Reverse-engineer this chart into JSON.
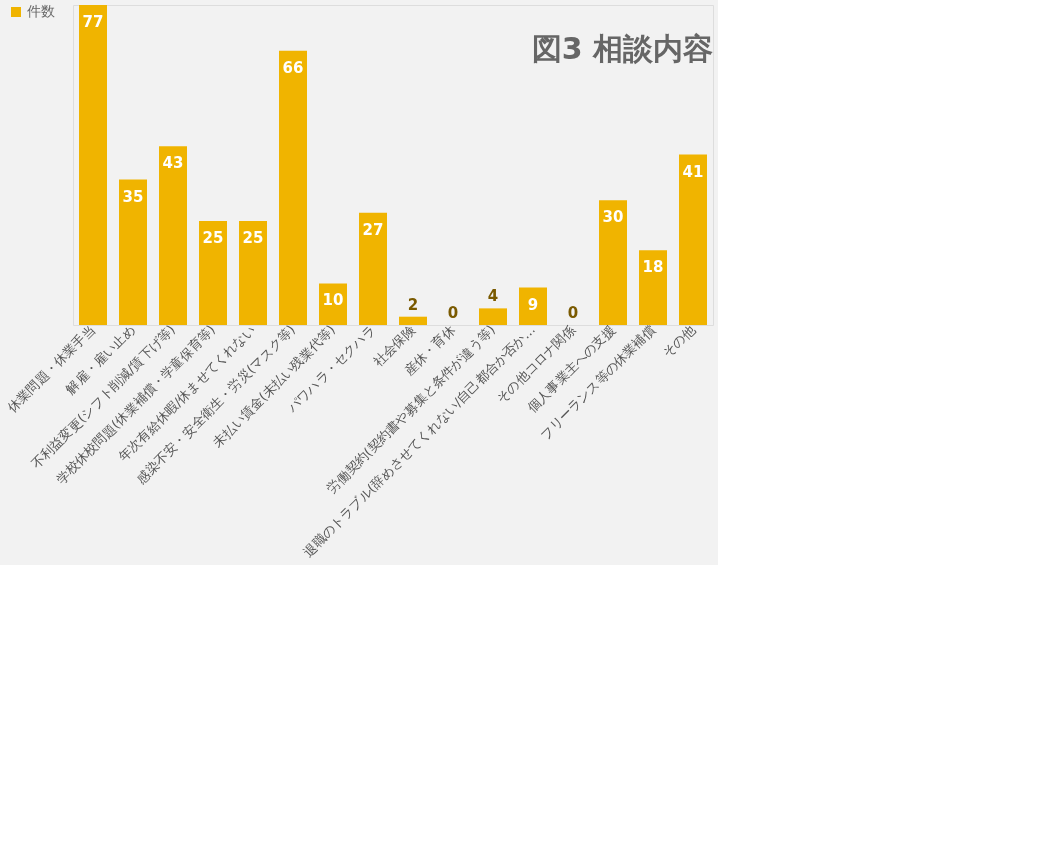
{
  "chart_data": {
    "type": "bar",
    "title": "図3 相談内容",
    "categories": [
      "休業問題・休業手当",
      "解雇・雇い止め",
      "不利益変更(シフト削減/賃下げ等)",
      "学校休校問題(休業補償・学童保育等)",
      "年次有給休暇/休ませてくれない",
      "感染不安・安全衛生・労災(マスク等)",
      "未払い賃金(未払い残業代等)",
      "パワハラ・セクハラ",
      "社会保険",
      "産休・育休",
      "労働契約(契約書や募集と条件が違う等)",
      "退職のトラブル(辞めさせてくれない/自己都合か否か…",
      "その他コロナ関係",
      "個人事業主への支援",
      "フリーランス等の休業補償",
      "その他"
    ],
    "series": [
      {
        "name": "件数",
        "color": "#f0b400",
        "values": [
          77,
          35,
          43,
          25,
          25,
          66,
          10,
          27,
          2,
          0,
          4,
          9,
          0,
          30,
          18,
          41
        ]
      }
    ],
    "data_labels": true,
    "legend": "left",
    "grid": false
  }
}
